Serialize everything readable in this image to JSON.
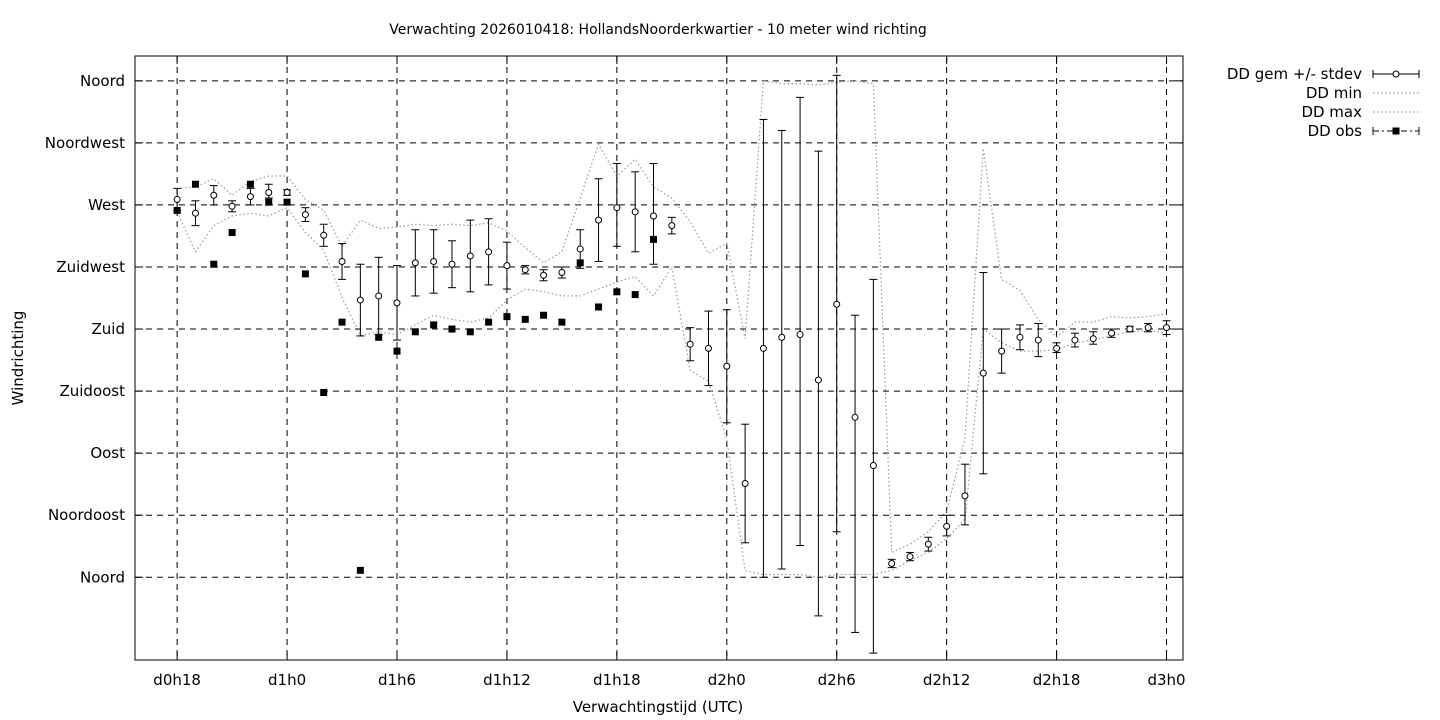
{
  "chart_data": {
    "type": "scatter",
    "title": "Verwachting 2026010418: HollandsNoorderkwartier - 10 meter wind richting",
    "xlabel": "Verwachtingstijd (UTC)",
    "ylabel": "Windrichting",
    "x_unit": "hours since d0h0",
    "xlim": [
      15.7,
      72.9
    ],
    "x_ticks": [
      {
        "x": 18,
        "label": "d0h18"
      },
      {
        "x": 24,
        "label": "d1h0"
      },
      {
        "x": 30,
        "label": "d1h6"
      },
      {
        "x": 36,
        "label": "d1h12"
      },
      {
        "x": 42,
        "label": "d1h18"
      },
      {
        "x": 48,
        "label": "d2h0"
      },
      {
        "x": 54,
        "label": "d2h6"
      },
      {
        "x": 60,
        "label": "d2h12"
      },
      {
        "x": 66,
        "label": "d2h18"
      },
      {
        "x": 72,
        "label": "d3h0"
      }
    ],
    "ylim": [
      -60,
      378
    ],
    "y_ticks": [
      {
        "y": 360,
        "label": "Noord"
      },
      {
        "y": 315,
        "label": "Noordwest"
      },
      {
        "y": 270,
        "label": "West"
      },
      {
        "y": 225,
        "label": "Zuidwest"
      },
      {
        "y": 180,
        "label": "Zuid"
      },
      {
        "y": 135,
        "label": "Zuidoost"
      },
      {
        "y": 90,
        "label": "Oost"
      },
      {
        "y": 45,
        "label": "Noordoost"
      },
      {
        "y": 0,
        "label": "Noord"
      }
    ],
    "grid": true,
    "legend_position": "outside-top-right",
    "series": [
      {
        "name": "DD gem +/- stdev",
        "style": "open-circle-errorbar",
        "x": [
          18,
          19,
          20,
          21,
          22,
          23,
          24,
          25,
          26,
          27,
          28,
          29,
          30,
          31,
          32,
          33,
          34,
          35,
          36,
          37,
          38,
          39,
          40,
          41,
          42,
          43,
          44,
          45,
          46,
          47,
          48,
          49,
          50,
          51,
          52,
          53,
          54,
          55,
          56,
          57,
          58,
          59,
          60,
          61,
          62,
          63,
          64,
          65,
          66,
          67,
          68,
          69,
          70,
          71,
          72
        ],
        "y": [
          274,
          264,
          277,
          269,
          276,
          279,
          279,
          263,
          248,
          229,
          201,
          204,
          199,
          228,
          229,
          227,
          233,
          236,
          226,
          223,
          219,
          221,
          238,
          259,
          268,
          265,
          262,
          255,
          169,
          166,
          153,
          68,
          166,
          174,
          176,
          143,
          198,
          116,
          81,
          10,
          15,
          24,
          37,
          59,
          148,
          164,
          174,
          172,
          166,
          172,
          173,
          177,
          180,
          181,
          181
        ],
        "err_low": [
          266,
          255,
          270,
          265,
          270,
          275,
          277,
          258,
          240,
          216,
          175,
          176,
          172,
          204,
          206,
          210,
          207,
          212,
          209,
          220,
          215,
          217,
          224,
          229,
          240,
          236,
          227,
          249,
          157,
          139,
          112,
          25,
          0,
          6,
          23,
          -28,
          33,
          -40,
          -55,
          7,
          12,
          19,
          30,
          38,
          75,
          148,
          165,
          160,
          163,
          167,
          169,
          174,
          178,
          178,
          176
        ],
        "err_high": [
          282,
          273,
          284,
          273,
          282,
          285,
          281,
          268,
          256,
          242,
          227,
          232,
          226,
          252,
          252,
          244,
          259,
          260,
          243,
          226,
          223,
          225,
          252,
          289,
          300,
          294,
          300,
          261,
          181,
          193,
          194,
          111,
          332,
          324,
          348,
          309,
          364,
          190,
          216,
          13,
          18,
          29,
          45,
          82,
          221,
          180,
          183,
          184,
          170,
          177,
          178,
          180,
          182,
          184,
          186
        ]
      },
      {
        "name": "DD min",
        "style": "dotted-line",
        "x": [
          18,
          19,
          20,
          21,
          22,
          23,
          24,
          25,
          26,
          27,
          28,
          29,
          30,
          31,
          32,
          33,
          34,
          35,
          36,
          37,
          38,
          39,
          40,
          41,
          42,
          43,
          44,
          45,
          46,
          47,
          48,
          49,
          50,
          51,
          52,
          53,
          54,
          55,
          56,
          57,
          58,
          59,
          60,
          61,
          62,
          63,
          64,
          65,
          66,
          67,
          68,
          69,
          70,
          71,
          72
        ],
        "y": [
          265,
          236,
          255,
          262,
          264,
          262,
          268,
          250,
          237,
          203,
          175,
          178,
          176,
          183,
          190,
          187,
          185,
          188,
          201,
          209,
          207,
          204,
          204,
          209,
          214,
          218,
          204,
          225,
          150,
          142,
          100,
          5,
          2,
          2,
          2,
          0,
          2,
          2,
          2,
          5,
          12,
          18,
          28,
          42,
          180,
          170,
          164,
          164,
          165,
          170,
          172,
          175,
          178,
          179,
          177
        ]
      },
      {
        "name": "DD max",
        "style": "dotted-line",
        "x": [
          18,
          19,
          20,
          21,
          22,
          23,
          24,
          25,
          26,
          27,
          28,
          29,
          30,
          31,
          32,
          33,
          34,
          35,
          36,
          37,
          38,
          39,
          40,
          41,
          42,
          43,
          44,
          45,
          46,
          47,
          48,
          49,
          50,
          51,
          52,
          53,
          54,
          55,
          56,
          57,
          58,
          59,
          60,
          61,
          62,
          63,
          64,
          65,
          66,
          67,
          68,
          69,
          70,
          71,
          72
        ],
        "y": [
          282,
          283,
          289,
          277,
          287,
          291,
          291,
          274,
          266,
          240,
          259,
          253,
          254,
          256,
          255,
          256,
          255,
          257,
          251,
          239,
          228,
          236,
          275,
          314,
          291,
          303,
          283,
          275,
          258,
          235,
          242,
          173,
          360,
          358,
          358,
          357,
          359,
          360,
          358,
          18,
          24,
          33,
          48,
          101,
          311,
          216,
          208,
          187,
          174,
          185,
          185,
          189,
          188,
          189,
          191
        ]
      },
      {
        "name": "DD obs",
        "style": "filled-square-dashdot",
        "x": [
          18,
          19,
          20,
          21,
          22,
          23,
          24,
          25,
          26,
          27,
          28,
          29,
          30,
          31,
          32,
          33,
          34,
          35,
          36,
          37,
          38,
          39,
          40,
          41,
          42,
          43,
          44
        ],
        "y": [
          266,
          285,
          227,
          250,
          285,
          272,
          272,
          220,
          134,
          185,
          5,
          174,
          164,
          178,
          183,
          180,
          178,
          185,
          189,
          187,
          190,
          185,
          228,
          196,
          207,
          205,
          245
        ]
      }
    ]
  }
}
